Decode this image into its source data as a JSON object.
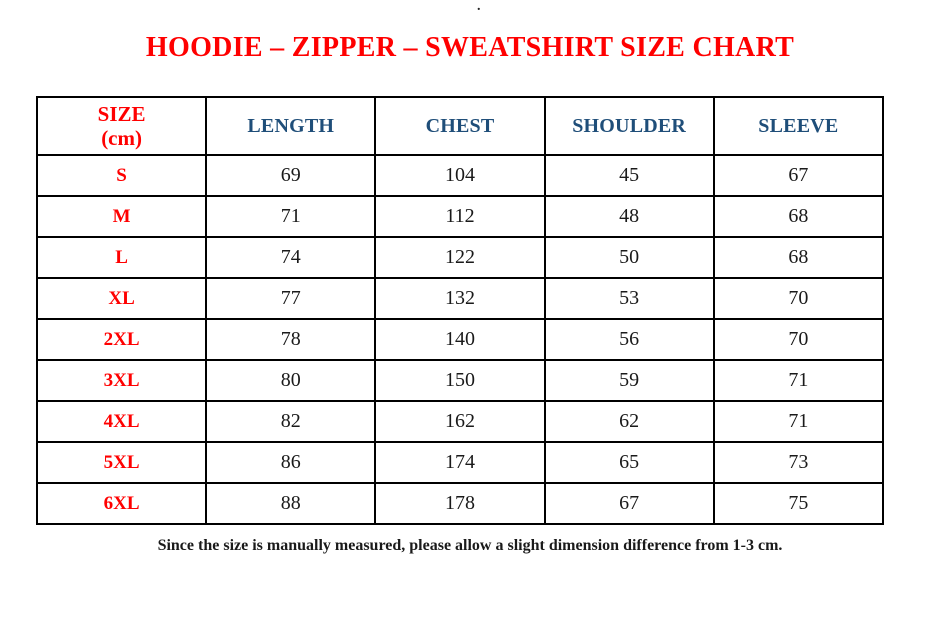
{
  "page": {
    "top_dot": "."
  },
  "title": {
    "text": "HOODIE – ZIPPER – SWEATSHIRT SIZE CHART",
    "color": "#ff0000"
  },
  "table": {
    "header": {
      "size_line1": "SIZE",
      "size_line2": "(cm)",
      "columns": [
        "LENGTH",
        "CHEST",
        "SHOULDER",
        "SLEEVE"
      ]
    },
    "rows": [
      {
        "size": "S",
        "values": [
          "69",
          "104",
          "45",
          "67"
        ]
      },
      {
        "size": "M",
        "values": [
          "71",
          "112",
          "48",
          "68"
        ]
      },
      {
        "size": "L",
        "values": [
          "74",
          "122",
          "50",
          "68"
        ]
      },
      {
        "size": "XL",
        "values": [
          "77",
          "132",
          "53",
          "70"
        ]
      },
      {
        "size": "2XL",
        "values": [
          "78",
          "140",
          "56",
          "70"
        ]
      },
      {
        "size": "3XL",
        "values": [
          "80",
          "150",
          "59",
          "71"
        ]
      },
      {
        "size": "4XL",
        "values": [
          "82",
          "162",
          "62",
          "71"
        ]
      },
      {
        "size": "5XL",
        "values": [
          "86",
          "174",
          "65",
          "73"
        ]
      },
      {
        "size": "6XL",
        "values": [
          "88",
          "178",
          "67",
          "75"
        ]
      }
    ]
  },
  "footer": {
    "note": "Since the size is manually measured, please allow a slight dimension difference from 1-3 cm."
  },
  "colors": {
    "accent_red": "#ff0000",
    "header_blue": "#1f4e79",
    "body_text": "#1a1a1a",
    "border": "#000000"
  },
  "chart_data": {
    "type": "table",
    "title": "HOODIE – ZIPPER – SWEATSHIRT SIZE CHART",
    "unit": "cm",
    "columns": [
      "SIZE (cm)",
      "LENGTH",
      "CHEST",
      "SHOULDER",
      "SLEEVE"
    ],
    "rows": [
      [
        "S",
        69,
        104,
        45,
        67
      ],
      [
        "M",
        71,
        112,
        48,
        68
      ],
      [
        "L",
        74,
        122,
        50,
        68
      ],
      [
        "XL",
        77,
        132,
        53,
        70
      ],
      [
        "2XL",
        78,
        140,
        56,
        70
      ],
      [
        "3XL",
        80,
        150,
        59,
        71
      ],
      [
        "4XL",
        82,
        162,
        62,
        71
      ],
      [
        "5XL",
        86,
        174,
        65,
        73
      ],
      [
        "6XL",
        88,
        178,
        67,
        75
      ]
    ]
  }
}
